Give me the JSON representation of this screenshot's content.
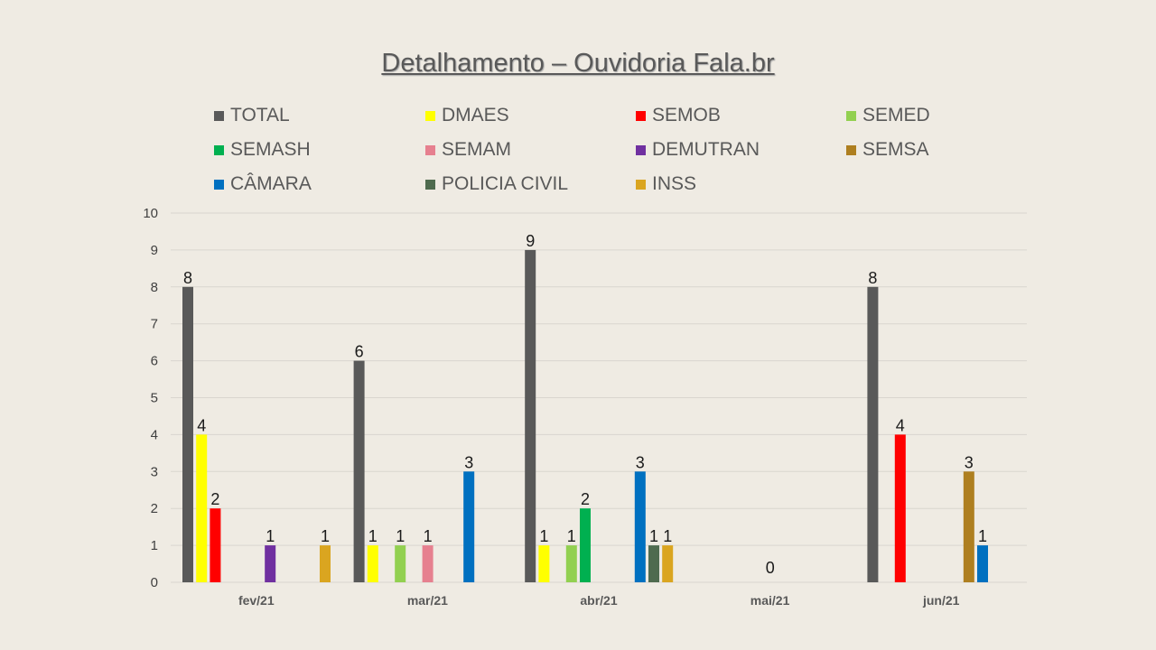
{
  "chart_data": {
    "type": "bar",
    "title": "Detalhamento – Ouvidoria Fala.br",
    "categories": [
      "fev/21",
      "mar/21",
      "abr/21",
      "mai/21",
      "jun/21"
    ],
    "ylim": [
      0,
      10
    ],
    "yticks": [
      "0",
      "1",
      "2",
      "3",
      "4",
      "5",
      "6",
      "7",
      "8",
      "9",
      "10"
    ],
    "grid": true,
    "legend_position": "top",
    "series": [
      {
        "name": "TOTAL",
        "color": "#595959",
        "values": [
          8,
          6,
          9,
          null,
          8
        ]
      },
      {
        "name": "DMAES",
        "color": "#ffff00",
        "values": [
          4,
          1,
          1,
          null,
          null
        ]
      },
      {
        "name": "SEMOB",
        "color": "#ff0000",
        "values": [
          2,
          null,
          null,
          null,
          4
        ]
      },
      {
        "name": "SEMED",
        "color": "#92d050",
        "values": [
          null,
          1,
          1,
          null,
          null
        ]
      },
      {
        "name": "SEMASH",
        "color": "#00b050",
        "values": [
          null,
          null,
          2,
          null,
          null
        ]
      },
      {
        "name": "SEMAM",
        "color": "#e6808f",
        "values": [
          null,
          1,
          null,
          0,
          null
        ]
      },
      {
        "name": "DEMUTRAN",
        "color": "#7030a0",
        "values": [
          1,
          null,
          null,
          null,
          null
        ]
      },
      {
        "name": "SEMSA",
        "color": "#ae7f20",
        "values": [
          null,
          null,
          null,
          null,
          3
        ]
      },
      {
        "name": "CÂMARA",
        "color": "#0070c0",
        "values": [
          null,
          3,
          3,
          null,
          1
        ]
      },
      {
        "name": "POLICIA CIVIL",
        "color": "#4f6b4f",
        "values": [
          null,
          null,
          1,
          null,
          null
        ]
      },
      {
        "name": "INSS",
        "color": "#daa520",
        "values": [
          1,
          null,
          1,
          null,
          null
        ]
      }
    ]
  }
}
